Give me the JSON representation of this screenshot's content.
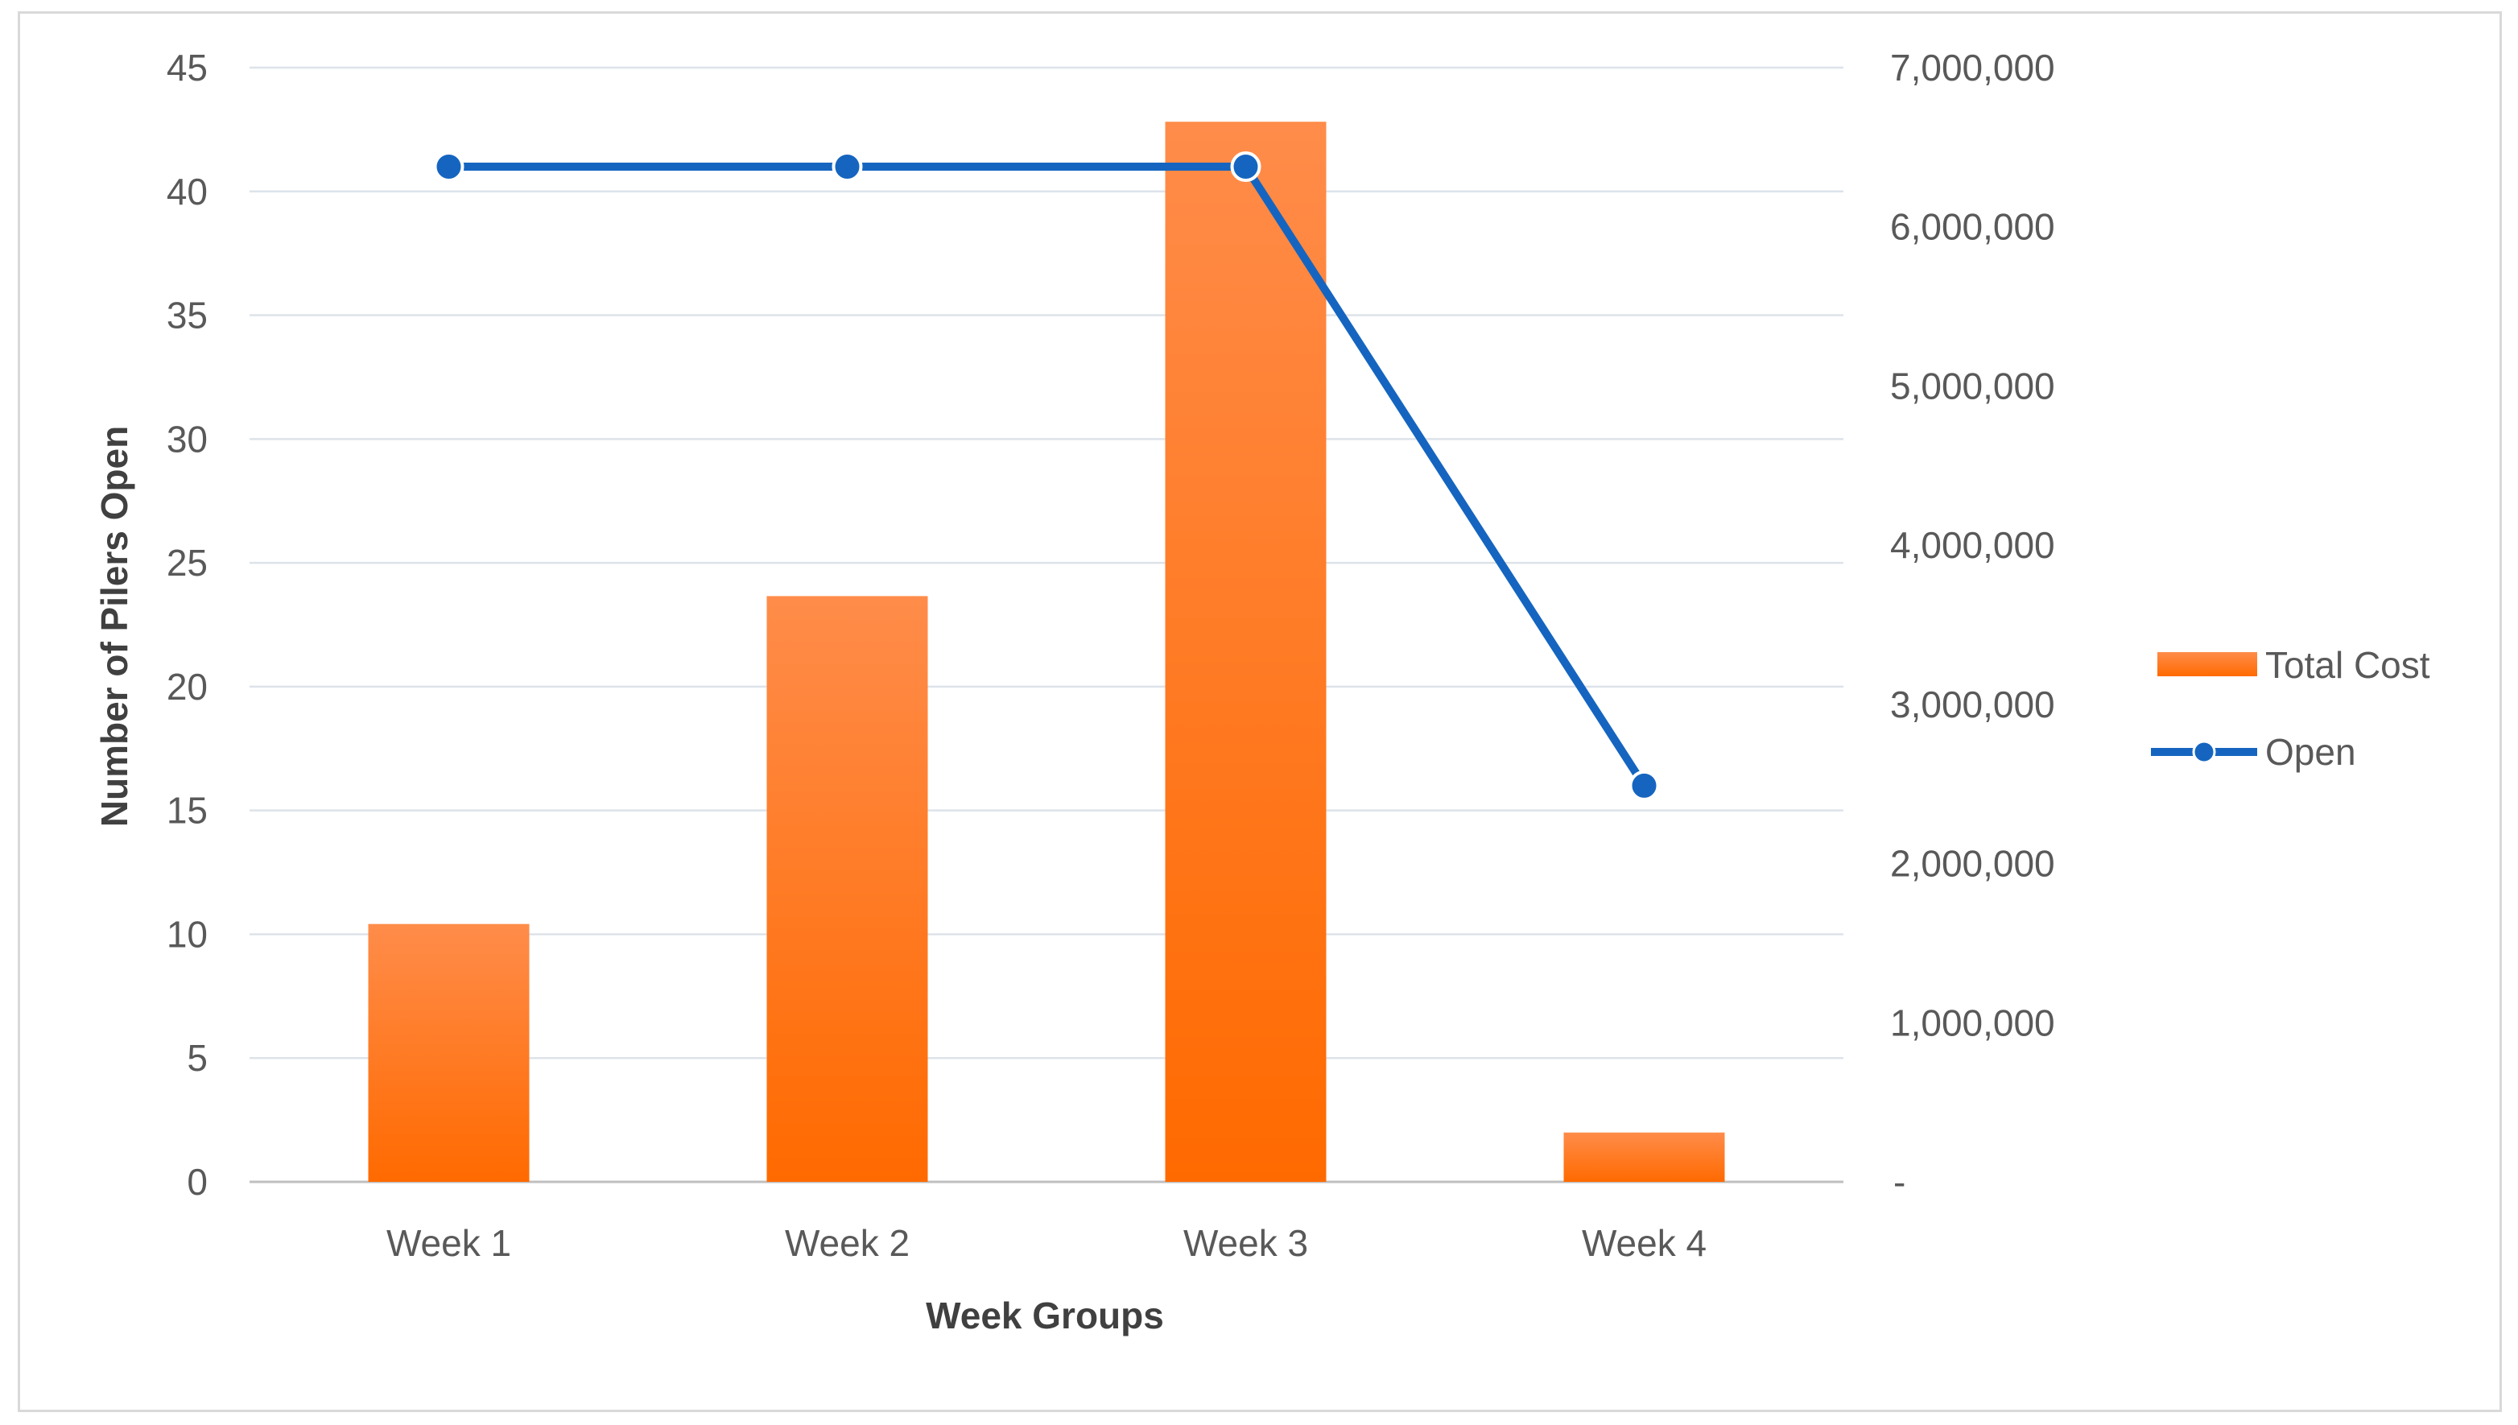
{
  "chart_data": {
    "type": "bar",
    "title": "",
    "categories": [
      "Week 1",
      "Week 2",
      "Week 3",
      "Week 4"
    ],
    "xlabel": "Week Groups",
    "ylabel": "Number of Pilers Open",
    "ylim": [
      0,
      45
    ],
    "y_ticks": [
      "0",
      "5",
      "10",
      "15",
      "20",
      "25",
      "30",
      "35",
      "40",
      "45"
    ],
    "y2lim": [
      0,
      7000000
    ],
    "y2_ticks": [
      "-",
      "1,000,000",
      "2,000,000",
      "3,000,000",
      "4,000,000",
      "5,000,000",
      "6,000,000",
      "7,000,000"
    ],
    "grid": true,
    "legend_position": "right",
    "series": [
      {
        "name": "Total Cost",
        "kind": "bar",
        "axis": "right",
        "color": "#ff7f2a",
        "values": [
          1620000,
          3680000,
          6660000,
          310000
        ]
      },
      {
        "name": "Open",
        "kind": "line",
        "axis": "left",
        "color": "#1565c0",
        "values": [
          41,
          41,
          41,
          16
        ]
      }
    ]
  }
}
